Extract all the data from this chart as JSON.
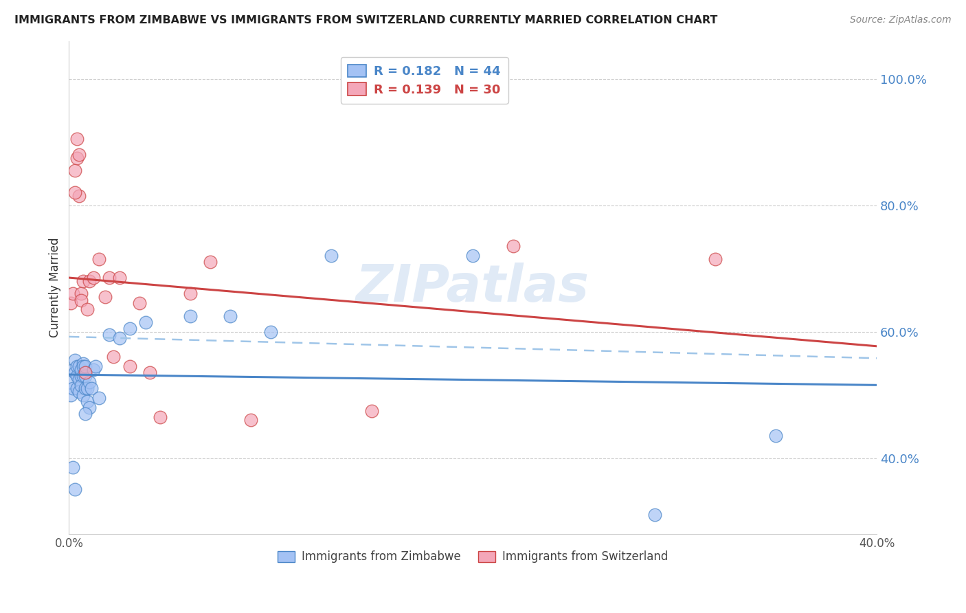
{
  "title": "IMMIGRANTS FROM ZIMBABWE VS IMMIGRANTS FROM SWITZERLAND CURRENTLY MARRIED CORRELATION CHART",
  "source": "Source: ZipAtlas.com",
  "ylabel": "Currently Married",
  "y_ticks": [
    0.4,
    0.6,
    0.8,
    1.0
  ],
  "y_tick_labels": [
    "40.0%",
    "60.0%",
    "80.0%",
    "100.0%"
  ],
  "x_lim": [
    0.0,
    0.4
  ],
  "y_lim": [
    0.28,
    1.06
  ],
  "legend_r1": "R = 0.182",
  "legend_n1": "N = 44",
  "legend_r2": "R = 0.139",
  "legend_n2": "N = 30",
  "color_zim": "#a4c2f4",
  "color_swi": "#f4a7b9",
  "color_zim_line": "#4a86c8",
  "color_swi_line": "#cc4444",
  "color_dash": "#9fc5e8",
  "watermark": "ZIPatlas",
  "zimbabwe_x": [
    0.001,
    0.001,
    0.002,
    0.002,
    0.003,
    0.003,
    0.004,
    0.004,
    0.004,
    0.005,
    0.005,
    0.005,
    0.006,
    0.006,
    0.006,
    0.007,
    0.007,
    0.007,
    0.007,
    0.008,
    0.008,
    0.008,
    0.009,
    0.009,
    0.01,
    0.01,
    0.011,
    0.012,
    0.013,
    0.015,
    0.02,
    0.025,
    0.03,
    0.038,
    0.06,
    0.08,
    0.1,
    0.13,
    0.2,
    0.29,
    0.35,
    0.002,
    0.003,
    0.008
  ],
  "zimbabwe_y": [
    0.5,
    0.52,
    0.54,
    0.51,
    0.535,
    0.555,
    0.51,
    0.53,
    0.545,
    0.525,
    0.545,
    0.505,
    0.53,
    0.515,
    0.54,
    0.55,
    0.53,
    0.5,
    0.545,
    0.51,
    0.53,
    0.545,
    0.51,
    0.49,
    0.48,
    0.52,
    0.51,
    0.54,
    0.545,
    0.495,
    0.595,
    0.59,
    0.605,
    0.615,
    0.625,
    0.625,
    0.6,
    0.72,
    0.72,
    0.31,
    0.435,
    0.385,
    0.35,
    0.47
  ],
  "switzerland_x": [
    0.001,
    0.002,
    0.003,
    0.004,
    0.004,
    0.005,
    0.006,
    0.006,
    0.007,
    0.008,
    0.009,
    0.01,
    0.012,
    0.015,
    0.018,
    0.02,
    0.022,
    0.025,
    0.03,
    0.035,
    0.04,
    0.045,
    0.06,
    0.07,
    0.09,
    0.15,
    0.22,
    0.32,
    0.003,
    0.005
  ],
  "switzerland_y": [
    0.645,
    0.66,
    0.855,
    0.905,
    0.875,
    0.815,
    0.66,
    0.65,
    0.68,
    0.535,
    0.635,
    0.68,
    0.685,
    0.715,
    0.655,
    0.685,
    0.56,
    0.685,
    0.545,
    0.645,
    0.535,
    0.465,
    0.66,
    0.71,
    0.46,
    0.475,
    0.735,
    0.715,
    0.82,
    0.88
  ]
}
